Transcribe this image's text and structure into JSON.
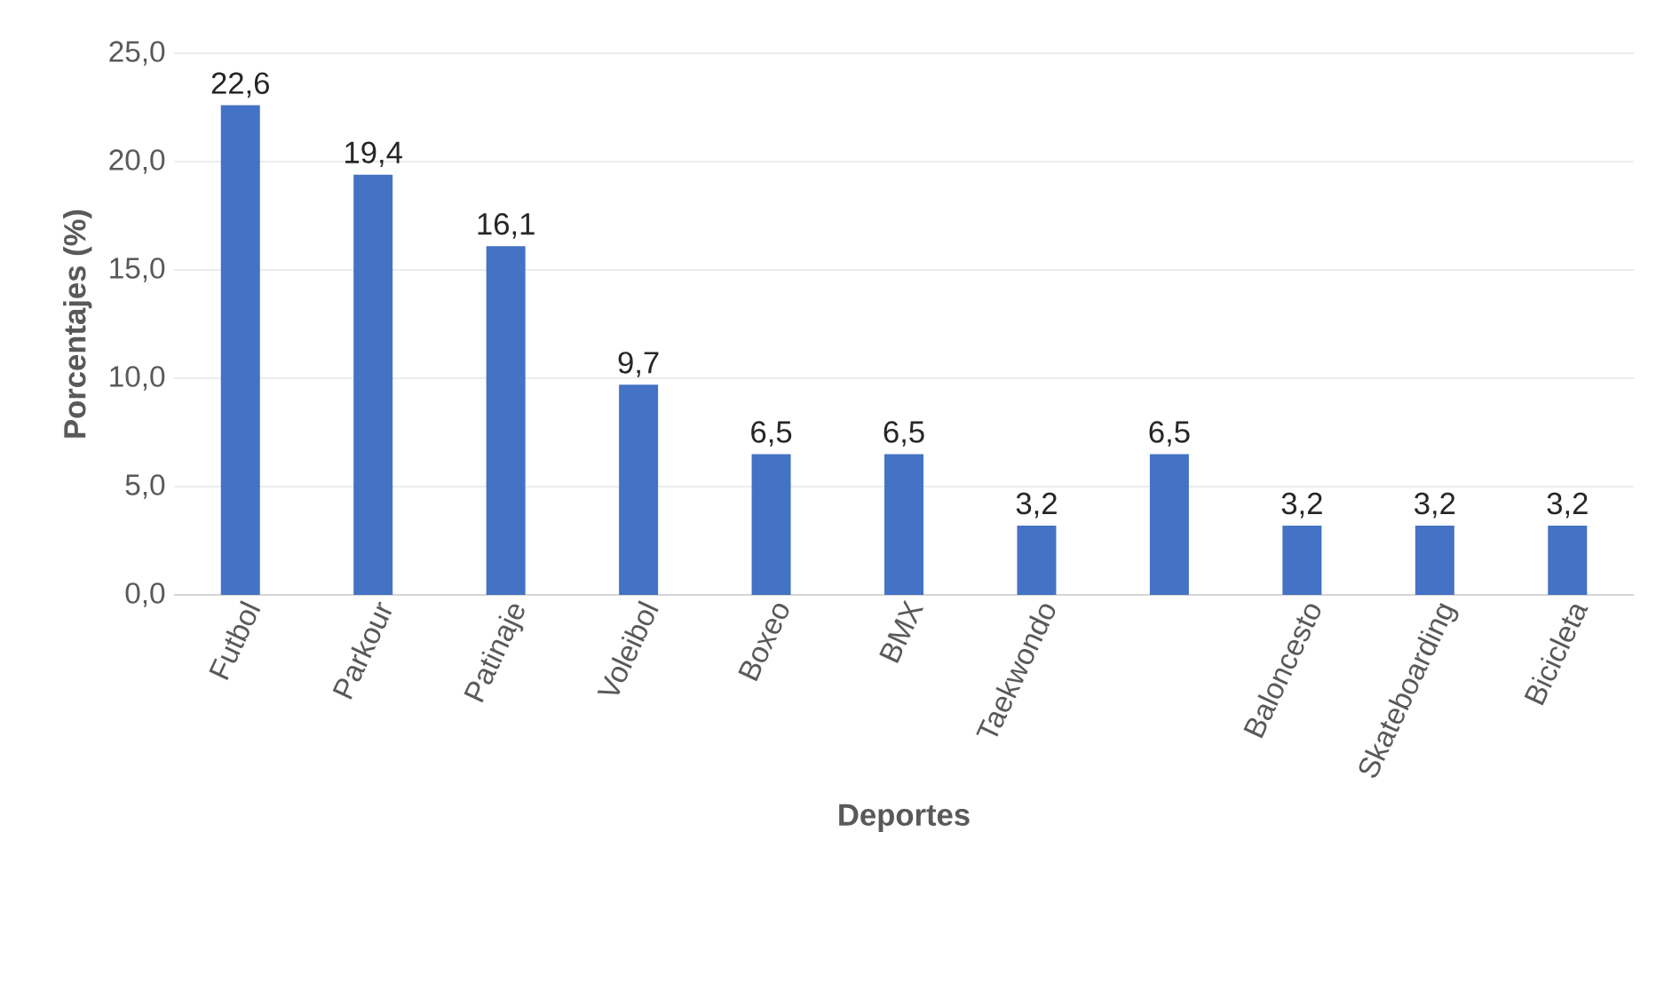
{
  "chart_data": {
    "type": "bar",
    "xlabel": "Deportes",
    "ylabel": "Porcentajes (%)",
    "categories": [
      "Futbol",
      "Parkour",
      "Patinaje",
      "Voleibol",
      "Boxeo",
      "BMX",
      "Taekwondo",
      null,
      "Baloncesto",
      "Skateboarding",
      "Bicicleta"
    ],
    "values": [
      22.6,
      19.4,
      16.1,
      9.7,
      6.5,
      6.5,
      3.2,
      6.5,
      3.2,
      3.2,
      3.2
    ],
    "value_labels": [
      "22,6",
      "19,4",
      "16,1",
      "9,7",
      "6,5",
      "6,5",
      "3,2",
      "6,5",
      "3,2",
      "3,2",
      "3,2"
    ],
    "color": "#4472c4",
    "ylim": [
      0,
      25
    ],
    "yticks": [
      {
        "value": 0,
        "label": "0,0"
      },
      {
        "value": 5,
        "label": "5,0"
      },
      {
        "value": 10,
        "label": "10,0"
      },
      {
        "value": 15,
        "label": "15,0"
      },
      {
        "value": 20,
        "label": "20,0"
      },
      {
        "value": 25,
        "label": "25,0"
      }
    ],
    "grid": "y"
  }
}
